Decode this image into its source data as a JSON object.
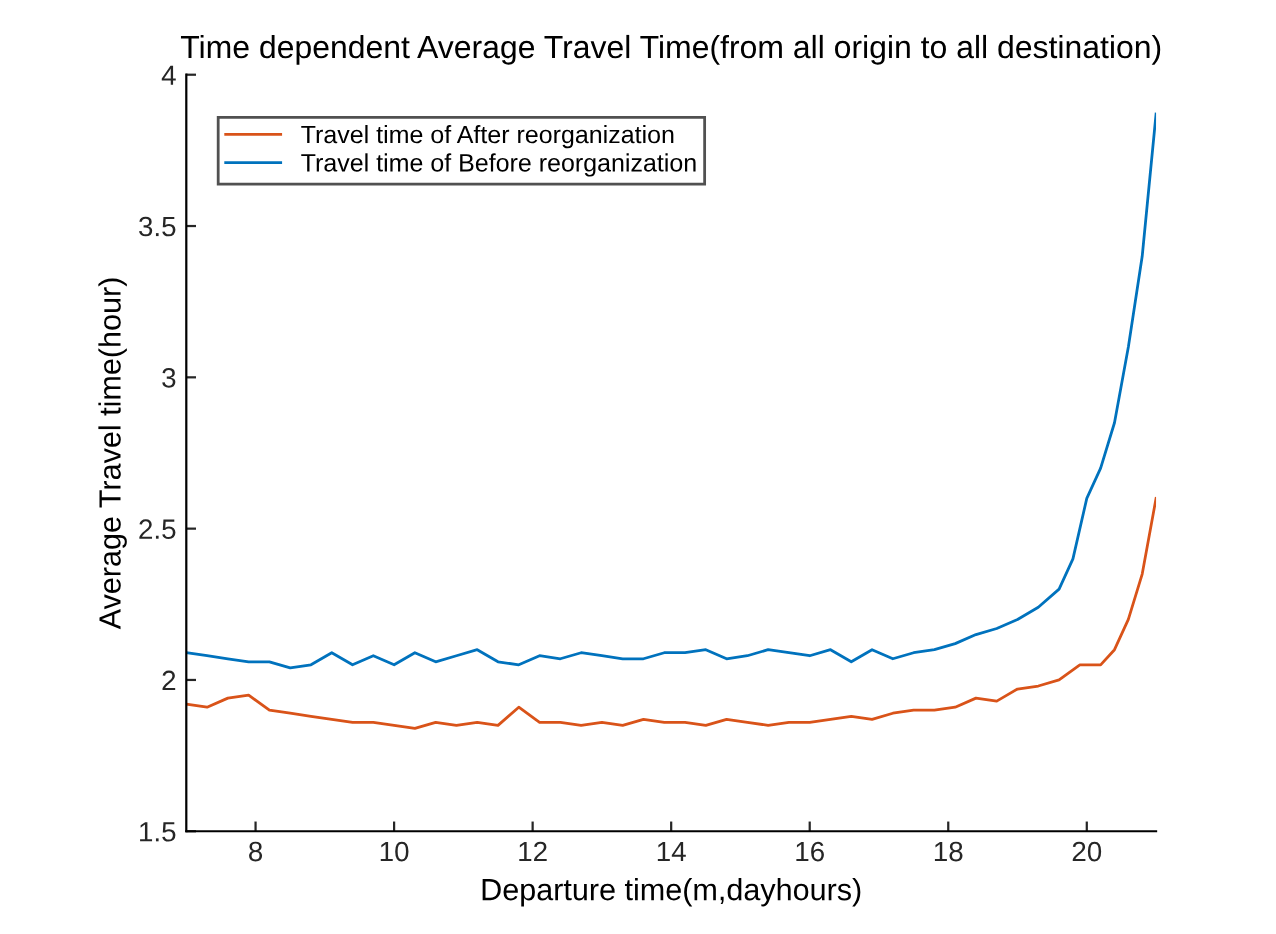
{
  "chart_data": {
    "type": "line",
    "title": "Time dependent Average Travel Time(from all origin to all destination)",
    "xlabel": "Departure time(m,dayhours)",
    "ylabel": "Average Travel time(hour)",
    "xlim": [
      7,
      21
    ],
    "xticks": [
      8,
      10,
      12,
      14,
      16,
      18,
      20
    ],
    "ylim": [
      1.5,
      4
    ],
    "yticks": [
      1.5,
      2,
      2.5,
      3,
      3.5,
      4
    ],
    "grid": false,
    "legend": "top left",
    "marker": "none",
    "line_style": "solid",
    "series": [
      {
        "name": "Travel time of After reorganization",
        "color": "#d95319",
        "x": [
          7,
          7.3,
          7.6,
          7.9,
          8.2,
          8.5,
          8.8,
          9.1,
          9.4,
          9.7,
          10,
          10.3,
          10.6,
          10.9,
          11.2,
          11.5,
          11.8,
          12.1,
          12.4,
          12.7,
          13,
          13.3,
          13.6,
          13.9,
          14.2,
          14.5,
          14.8,
          15.1,
          15.4,
          15.7,
          16,
          16.3,
          16.6,
          16.9,
          17.2,
          17.5,
          17.8,
          18.1,
          18.4,
          18.7,
          19,
          19.3,
          19.6,
          19.9,
          20.2,
          20.4,
          20.6,
          20.8,
          21
        ],
        "values": [
          1.92,
          1.91,
          1.94,
          1.95,
          1.9,
          1.89,
          1.88,
          1.87,
          1.86,
          1.86,
          1.85,
          1.84,
          1.86,
          1.85,
          1.86,
          1.85,
          1.91,
          1.86,
          1.86,
          1.85,
          1.86,
          1.85,
          1.87,
          1.86,
          1.86,
          1.85,
          1.87,
          1.86,
          1.85,
          1.86,
          1.86,
          1.87,
          1.88,
          1.87,
          1.89,
          1.9,
          1.9,
          1.91,
          1.94,
          1.93,
          1.97,
          1.98,
          2.0,
          2.05,
          2.05,
          2.1,
          2.2,
          2.35,
          2.6
        ]
      },
      {
        "name": "Travel time of Before reorganization",
        "color": "#0072bd",
        "x": [
          7,
          7.3,
          7.6,
          7.9,
          8.2,
          8.5,
          8.8,
          9.1,
          9.4,
          9.7,
          10,
          10.3,
          10.6,
          10.9,
          11.2,
          11.5,
          11.8,
          12.1,
          12.4,
          12.7,
          13,
          13.3,
          13.6,
          13.9,
          14.2,
          14.5,
          14.8,
          15.1,
          15.4,
          15.7,
          16,
          16.3,
          16.6,
          16.9,
          17.2,
          17.5,
          17.8,
          18.1,
          18.4,
          18.7,
          19,
          19.3,
          19.6,
          19.8,
          20,
          20.2,
          20.4,
          20.6,
          20.8,
          21
        ],
        "values": [
          2.09,
          2.08,
          2.07,
          2.06,
          2.06,
          2.04,
          2.05,
          2.09,
          2.05,
          2.08,
          2.05,
          2.09,
          2.06,
          2.08,
          2.1,
          2.06,
          2.05,
          2.08,
          2.07,
          2.09,
          2.08,
          2.07,
          2.07,
          2.09,
          2.09,
          2.1,
          2.07,
          2.08,
          2.1,
          2.09,
          2.08,
          2.1,
          2.06,
          2.1,
          2.07,
          2.09,
          2.1,
          2.12,
          2.15,
          2.17,
          2.2,
          2.24,
          2.3,
          2.4,
          2.6,
          2.7,
          2.85,
          3.1,
          3.4,
          3.87
        ]
      }
    ]
  }
}
